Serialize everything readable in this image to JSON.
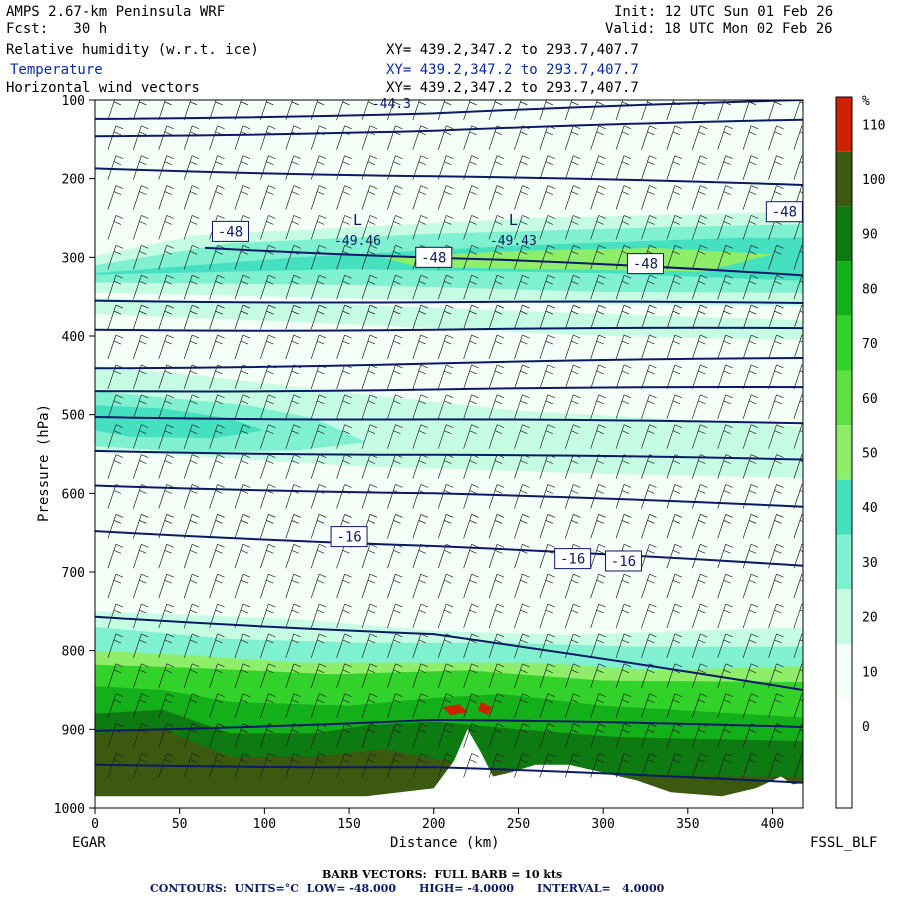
{
  "header": {
    "model": "AMPS 2.67-km Peninsula WRF",
    "init": "Init: 12 UTC Sun 01 Feb 26",
    "fcst": "Fcst:   30 h",
    "valid": "Valid: 18 UTC Mon 02 Feb 26",
    "fields": [
      {
        "label": "Relative humidity (w.r.t. ice)",
        "xy": "XY= 439.2,347.2 to 293.7,407.7"
      },
      {
        "label": "Temperature",
        "xy": "XY= 439.2,347.2 to 293.7,407.7"
      },
      {
        "label": "Horizontal wind vectors",
        "xy": "XY= 439.2,347.2 to 293.7,407.7"
      }
    ]
  },
  "footer": {
    "barb": "BARB VECTORS:  FULL BARB = 10 kts",
    "contours": "CONTOURS:  UNITS=°C  LOW= -48.000      HIGH= -4.0000      INTERVAL=   4.0000"
  },
  "colors": {
    "rh_10": "#f4fff8",
    "rh_30": "#c6fce4",
    "rh_40": "#7ff0d0",
    "rh_50": "#45e0c0",
    "rh_60": "#8eee6a",
    "rh_70": "#5ee045",
    "rh_80": "#33d22a",
    "rh_90": "#13b01a",
    "rh_100": "#0e7a12",
    "rh_110": "#3b5a10",
    "rh_high": "#cc2200",
    "contour": "#0a1a66",
    "terrain": "#ffffff"
  },
  "chart_data": {
    "type": "heatmap",
    "xlabel": "Distance (km)",
    "ylabel": "Pressure (hPa)",
    "x_ticks": [
      0,
      50,
      100,
      150,
      200,
      250,
      300,
      350,
      400
    ],
    "y_ticks": [
      100,
      200,
      300,
      400,
      500,
      600,
      700,
      800,
      900,
      1000
    ],
    "xlim": [
      0,
      418
    ],
    "ylim": [
      1000,
      100
    ],
    "left_endpoint": "EGAR",
    "right_endpoint": "FSSL_BLF",
    "colorbar": {
      "unit": "%",
      "levels": [
        0,
        10,
        20,
        30,
        40,
        50,
        60,
        70,
        80,
        90,
        100,
        110
      ]
    },
    "contour_labels": [
      {
        "text": "-48",
        "x": 80,
        "p": 267
      },
      {
        "text": "-48",
        "x": 200,
        "p": 300
      },
      {
        "text": "-48",
        "x": 325,
        "p": 308
      },
      {
        "text": "-48",
        "x": 407,
        "p": 242
      },
      {
        "text": "-16",
        "x": 150,
        "p": 655
      },
      {
        "text": "-16",
        "x": 282,
        "p": 683
      },
      {
        "text": "-16",
        "x": 312,
        "p": 686
      }
    ],
    "low_centers": [
      {
        "label": "L",
        "value": "-49.46",
        "x": 155,
        "p": 264
      },
      {
        "label": "L",
        "value": "-49.43",
        "x": 247,
        "p": 264
      }
    ],
    "top_partial_label": "-44.3",
    "temperature_contours_hPa": [
      [
        [
          0,
          124
        ],
        [
          200,
          117
        ],
        [
          418,
          100
        ]
      ],
      [
        [
          0,
          146
        ],
        [
          200,
          139
        ],
        [
          418,
          125
        ]
      ],
      [
        [
          0,
          187
        ],
        [
          200,
          197
        ],
        [
          418,
          208
        ]
      ],
      [
        [
          65,
          288
        ],
        [
          240,
          303
        ],
        [
          418,
          323
        ]
      ],
      [
        [
          0,
          355
        ],
        [
          200,
          357
        ],
        [
          418,
          358
        ]
      ],
      [
        [
          0,
          392
        ],
        [
          200,
          392
        ],
        [
          418,
          390
        ]
      ],
      [
        [
          0,
          441
        ],
        [
          200,
          435
        ],
        [
          418,
          428
        ]
      ],
      [
        [
          0,
          470
        ],
        [
          200,
          468
        ],
        [
          418,
          465
        ]
      ],
      [
        [
          0,
          503
        ],
        [
          200,
          506
        ],
        [
          418,
          511
        ]
      ],
      [
        [
          0,
          546
        ],
        [
          200,
          551
        ],
        [
          418,
          557
        ]
      ],
      [
        [
          0,
          590
        ],
        [
          200,
          600
        ],
        [
          418,
          617
        ]
      ],
      [
        [
          0,
          648
        ],
        [
          200,
          667
        ],
        [
          418,
          692
        ]
      ],
      [
        [
          0,
          757
        ],
        [
          200,
          779
        ],
        [
          418,
          850
        ]
      ],
      [
        [
          0,
          902
        ],
        [
          200,
          888
        ],
        [
          418,
          897
        ]
      ],
      [
        [
          0,
          945
        ],
        [
          200,
          948
        ],
        [
          418,
          968
        ]
      ]
    ]
  }
}
